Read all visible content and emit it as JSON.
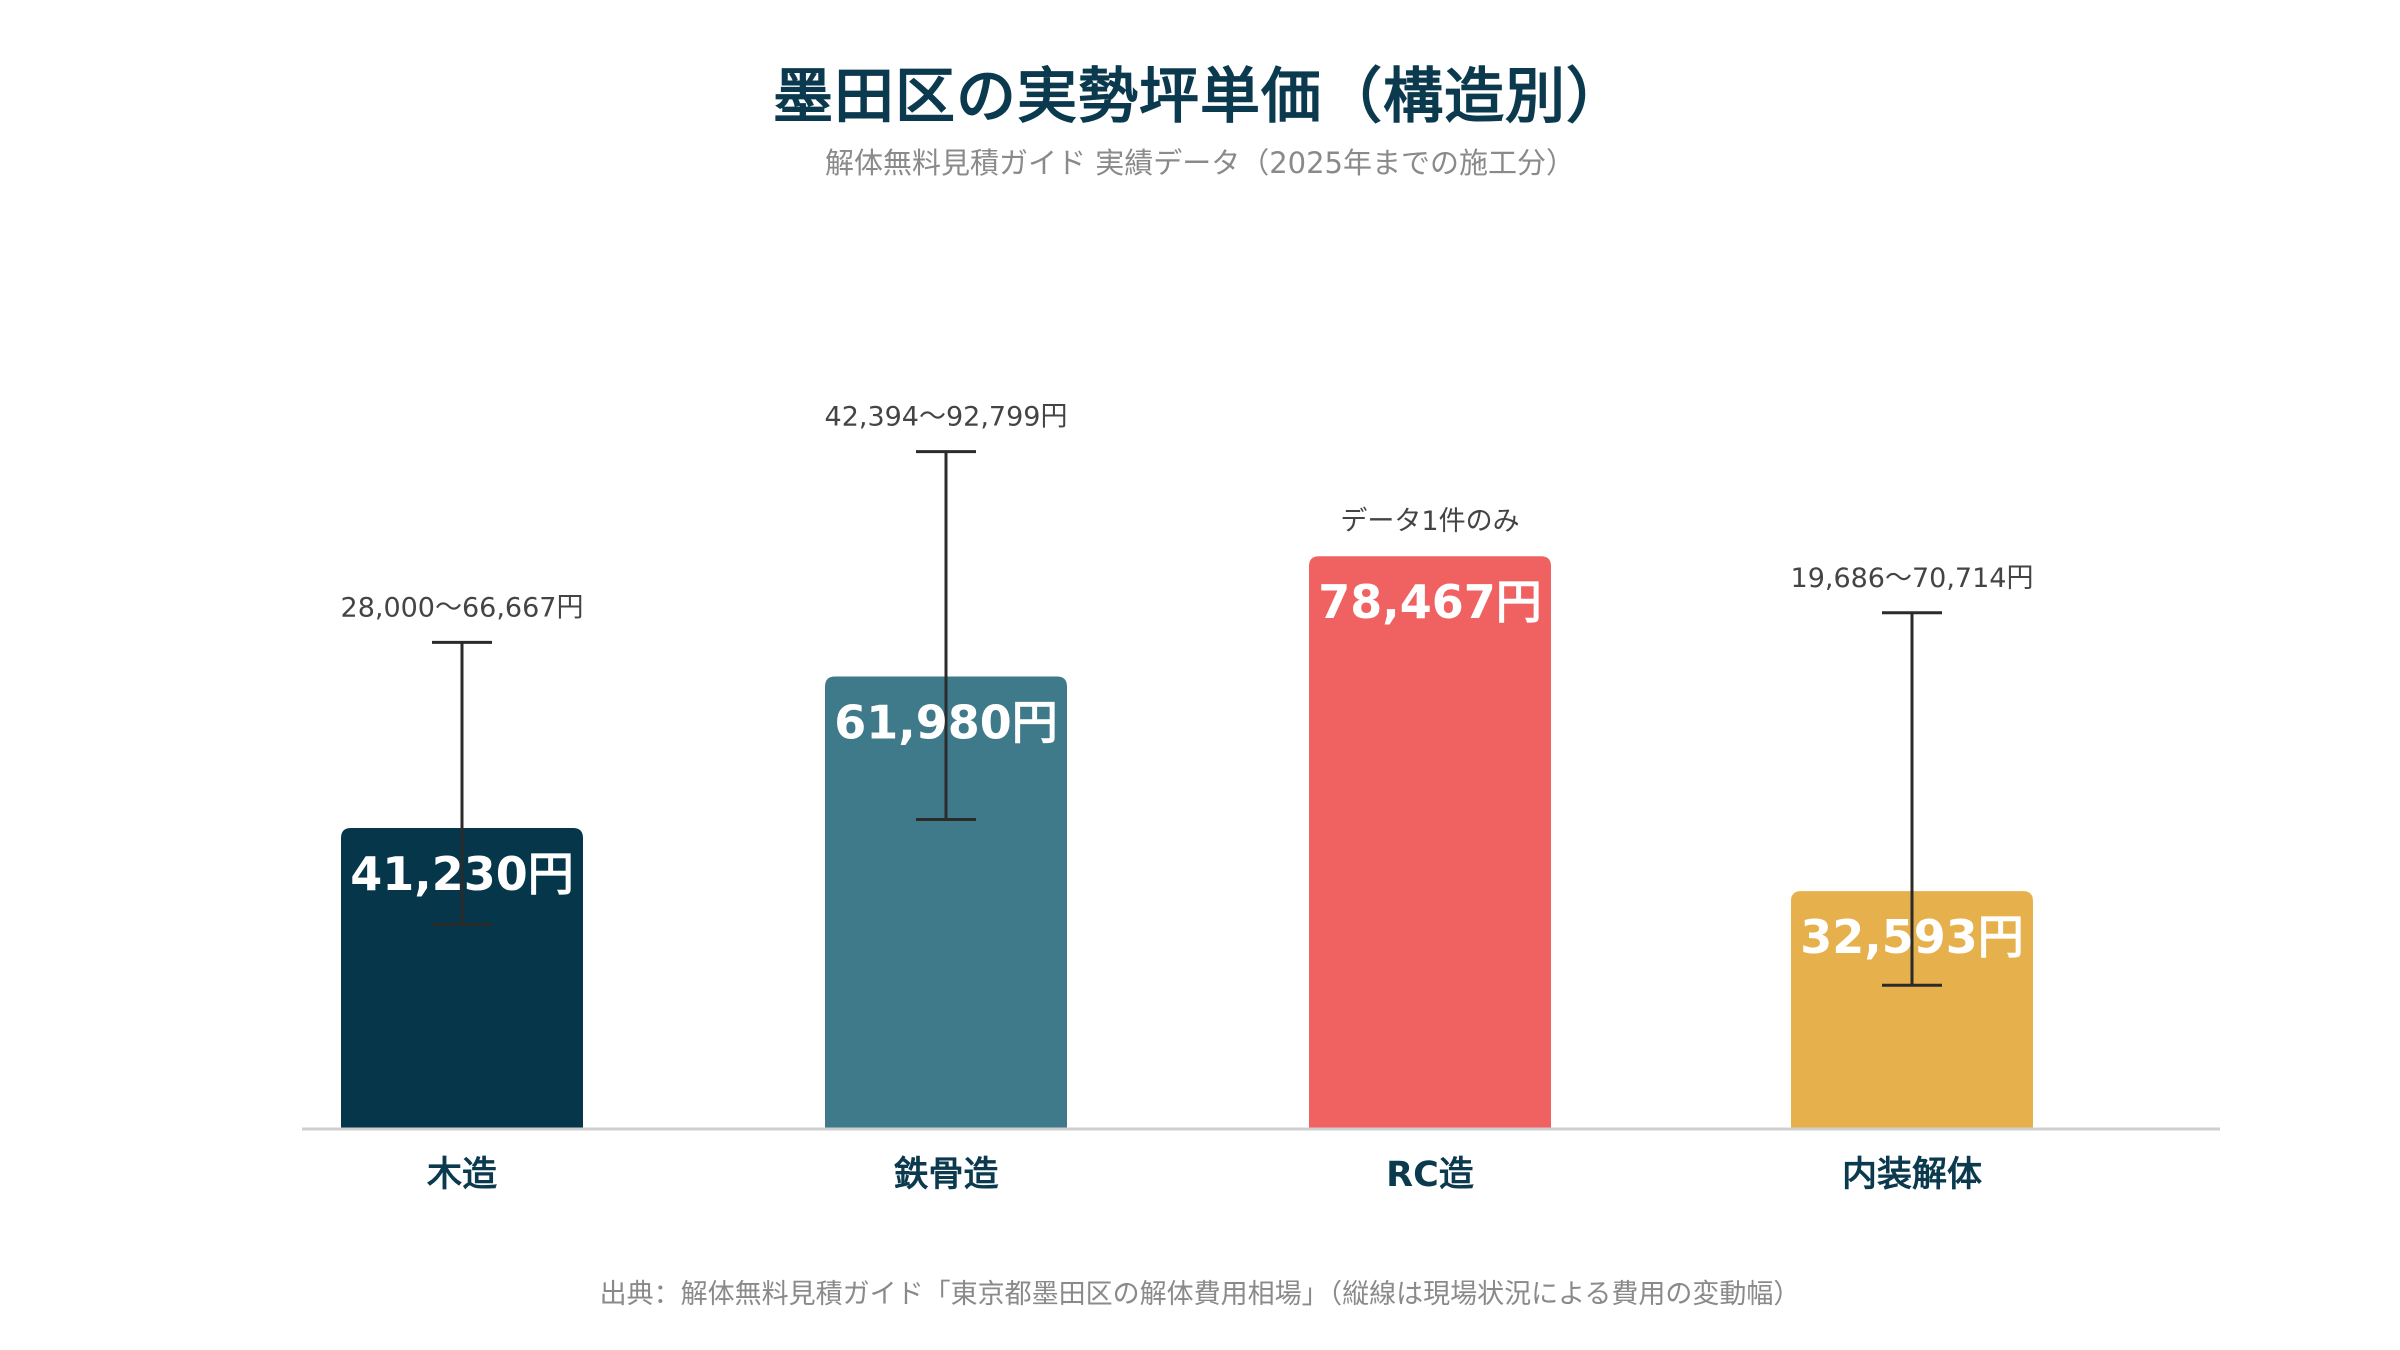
{
  "chart_data": {
    "type": "bar",
    "title": "墨田区の実勢坪単価（構造別）",
    "subtitle": "解体無料見積ガイド 実績データ（2025年までの施工分）",
    "source": "出典：解体無料見積ガイド「東京都墨田区の解体費用相場」（縦線は現場状況による費用の変動幅）",
    "categories": [
      "木造",
      "鉄骨造",
      "RC造",
      "内装解体"
    ],
    "values": [
      41230,
      61980,
      78467,
      32593
    ],
    "value_labels": [
      "41,230円",
      "61,980円",
      "78,467円",
      "32,593円"
    ],
    "error_ranges": [
      [
        28000,
        66667
      ],
      [
        42394,
        92799
      ],
      null,
      [
        19686,
        70714
      ]
    ],
    "range_labels": [
      "28,000〜66,667円",
      "42,394〜92,799円",
      "データ1件のみ",
      "19,686〜70,714円"
    ],
    "colors": [
      "#05364a",
      "#3f7a8a",
      "#f06262",
      "#e6b04c"
    ],
    "ylim": [
      0,
      100000
    ],
    "grid": false,
    "legend": "none"
  }
}
